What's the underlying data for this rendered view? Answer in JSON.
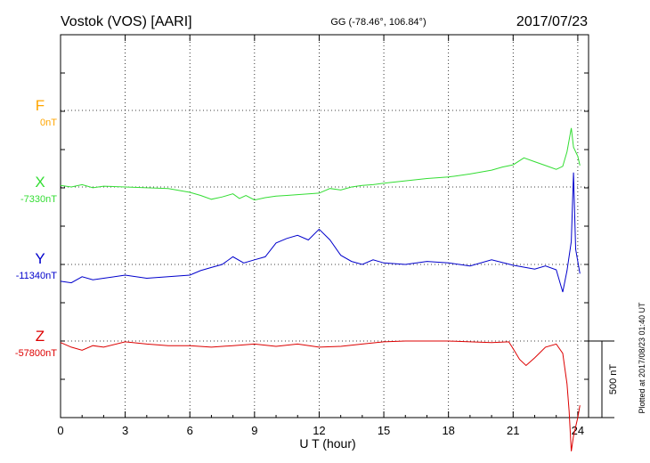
{
  "chart_data": {
    "type": "line",
    "title": "Vostok (VOS)  [AARI]",
    "coords": "GG (-78.46°, 106.84°)",
    "date": "2017/07/23",
    "xlabel": "U T (hour)",
    "xlim": [
      0,
      24.5
    ],
    "xticks": [
      "0",
      "3",
      "6",
      "9",
      "12",
      "15",
      "18",
      "21",
      "24"
    ],
    "grid": true,
    "scale_bar": "500 nT",
    "plotted_note": "Plotted at 2017/08/23 01:40 UT",
    "series": [
      {
        "name": "F",
        "baseline": "0nT",
        "color": "#ffa500",
        "values": []
      },
      {
        "name": "X",
        "baseline": "-7330nT",
        "color": "#33dd33",
        "x": [
          0,
          0.5,
          1,
          1.5,
          2,
          3,
          4,
          5,
          6,
          6.5,
          7,
          7.5,
          8,
          8.3,
          8.6,
          9,
          9.5,
          10,
          10.5,
          11,
          12,
          12.5,
          13,
          13.5,
          14,
          14.5,
          15,
          16,
          17,
          18,
          19,
          20,
          20.5,
          21,
          21.5,
          22,
          22.5,
          23,
          23.3,
          23.5,
          23.7,
          23.8,
          24,
          24.1
        ],
        "values": [
          10,
          0,
          15,
          -5,
          5,
          0,
          -5,
          -10,
          -35,
          -55,
          -80,
          -65,
          -45,
          -75,
          -55,
          -85,
          -70,
          -60,
          -55,
          -50,
          -40,
          -10,
          -20,
          0,
          10,
          15,
          25,
          40,
          55,
          65,
          85,
          110,
          130,
          145,
          190,
          165,
          140,
          115,
          135,
          230,
          385,
          260,
          200,
          140
        ]
      },
      {
        "name": "Y",
        "baseline": "-11340nT",
        "color": "#0000cc",
        "x": [
          0,
          0.5,
          1,
          1.5,
          2,
          3,
          4,
          5,
          6,
          6.5,
          7,
          7.5,
          8,
          8.5,
          9,
          9.5,
          10,
          10.5,
          11,
          11.5,
          12,
          12.5,
          13,
          13.5,
          14,
          14.5,
          15,
          16,
          17,
          18,
          19,
          20,
          21,
          22,
          22.5,
          23,
          23.3,
          23.5,
          23.7,
          23.8,
          23.9,
          24,
          24.1
        ],
        "values": [
          -110,
          -120,
          -80,
          -100,
          -90,
          -70,
          -90,
          -80,
          -70,
          -40,
          -20,
          0,
          50,
          10,
          30,
          50,
          140,
          170,
          190,
          160,
          230,
          160,
          60,
          20,
          0,
          30,
          10,
          0,
          20,
          10,
          -10,
          30,
          -5,
          -30,
          -10,
          -35,
          -180,
          -40,
          150,
          600,
          100,
          20,
          -60
        ]
      },
      {
        "name": "Z",
        "baseline": "-57800nT",
        "color": "#dd0000",
        "x": [
          0,
          0.5,
          1,
          1.5,
          2,
          3,
          4,
          5,
          6,
          7,
          8,
          9,
          10,
          11,
          12,
          13,
          14,
          15,
          16,
          17,
          18,
          19,
          20,
          20.8,
          21,
          21.3,
          21.6,
          22,
          22.5,
          23,
          23.3,
          23.5,
          23.6,
          23.7,
          23.8,
          24,
          24.1
        ],
        "values": [
          -10,
          -40,
          -60,
          -30,
          -40,
          -5,
          -20,
          -30,
          -30,
          -40,
          -30,
          -20,
          -35,
          -20,
          -40,
          -35,
          -20,
          -5,
          0,
          0,
          0,
          -5,
          -10,
          -5,
          -50,
          -120,
          -160,
          -110,
          -40,
          -20,
          -80,
          -280,
          -460,
          -720,
          -620,
          -500,
          -420
        ]
      }
    ]
  }
}
